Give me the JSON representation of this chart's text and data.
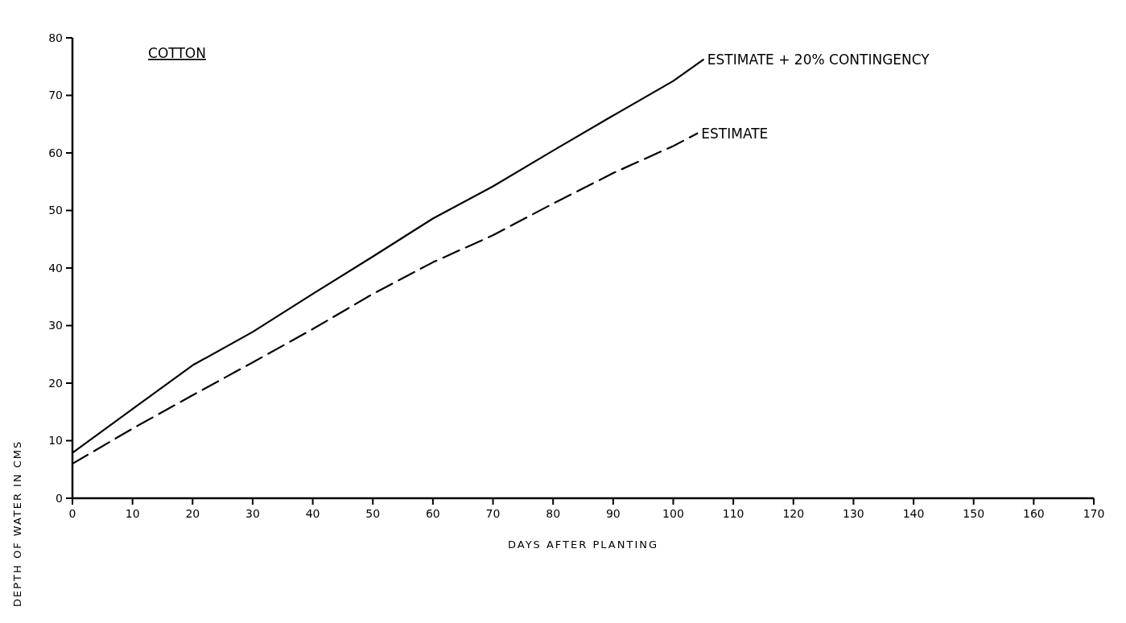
{
  "chart_data": {
    "type": "line",
    "title": "COTTON",
    "xlabel": "DAYS AFTER PLANTING",
    "ylabel": "DEPTH OF WATER IN CMS",
    "xlim": [
      0,
      170
    ],
    "xticks": [
      0,
      10,
      20,
      30,
      40,
      50,
      60,
      70,
      80,
      90,
      100,
      110,
      120,
      130,
      140,
      150,
      160,
      170
    ],
    "ylim": [
      0,
      80
    ],
    "yticks": [
      0,
      10,
      20,
      30,
      40,
      50,
      60,
      70,
      80
    ],
    "series": [
      {
        "name": "ESTIMATE + 20% CONTINGENCY",
        "color": "#000000",
        "line_style": "solid",
        "x": [
          0,
          10,
          20,
          30,
          40,
          50,
          60,
          70,
          80,
          90,
          100,
          105
        ],
        "values": [
          7.9,
          15.5,
          23.1,
          28.9,
          35.5,
          42,
          48.6,
          54.2,
          60.4,
          66.5,
          72.5,
          76.2
        ]
      },
      {
        "name": "ESTIMATE",
        "color": "#000000",
        "line_style": "dashed",
        "x": [
          0,
          10,
          20,
          30,
          40,
          50,
          60,
          70,
          80,
          90,
          100,
          104
        ],
        "values": [
          6,
          12.1,
          17.9,
          23.6,
          29.4,
          35.5,
          41,
          45.7,
          51.2,
          56.5,
          61.2,
          63.4
        ]
      }
    ]
  }
}
